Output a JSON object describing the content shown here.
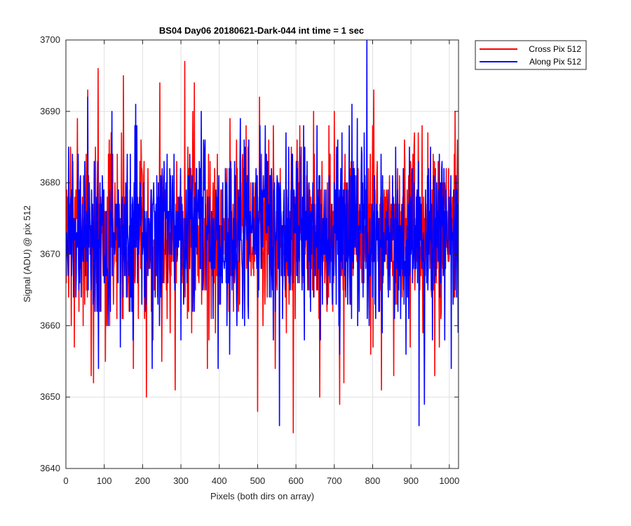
{
  "chart_data": {
    "type": "line",
    "title": "BS04 Day06 20180621-Dark-044 int time = 1 sec",
    "xlabel": "Pixels (both dirs on array)",
    "ylabel": "Signal (ADU) @ pix 512",
    "xlim": [
      0,
      1024
    ],
    "ylim": [
      3640,
      3700
    ],
    "xticks": [
      0,
      100,
      200,
      300,
      400,
      500,
      600,
      700,
      800,
      900,
      1000
    ],
    "yticks": [
      3640,
      3650,
      3660,
      3670,
      3680,
      3690,
      3700
    ],
    "grid": true,
    "legend_position": "top-right outside",
    "series_stats": {
      "mean": 3673,
      "spread": 6,
      "samples": 1024
    },
    "series": [
      {
        "name": "Cross Pix 512",
        "color": "#ff0000",
        "seed": 7,
        "spikes": [
          [
            12,
            3685
          ],
          [
            22,
            3657
          ],
          [
            30,
            3689
          ],
          [
            45,
            3660
          ],
          [
            57,
            3693
          ],
          [
            66,
            3653
          ],
          [
            72,
            3652
          ],
          [
            84,
            3696
          ],
          [
            103,
            3655
          ],
          [
            150,
            3695
          ],
          [
            176,
            3654
          ],
          [
            204,
            3683
          ],
          [
            210,
            3650
          ],
          [
            245,
            3694
          ],
          [
            250,
            3655
          ],
          [
            285,
            3651
          ],
          [
            310,
            3697
          ],
          [
            335,
            3694
          ],
          [
            369,
            3654
          ],
          [
            428,
            3689
          ],
          [
            470,
            3688
          ],
          [
            500,
            3648
          ],
          [
            505,
            3692
          ],
          [
            546,
            3654
          ],
          [
            593,
            3645
          ],
          [
            610,
            3688
          ],
          [
            662,
            3650
          ],
          [
            700,
            3690
          ],
          [
            714,
            3649
          ],
          [
            725,
            3652
          ],
          [
            795,
            3656
          ],
          [
            803,
            3693
          ],
          [
            823,
            3651
          ],
          [
            855,
            3653
          ],
          [
            935,
            3655
          ],
          [
            962,
            3653
          ],
          [
            1015,
            3690
          ]
        ]
      },
      {
        "name": "Along Pix 512",
        "color": "#0000ff",
        "seed": 19,
        "spikes": [
          [
            20,
            3664
          ],
          [
            57,
            3692
          ],
          [
            85,
            3654
          ],
          [
            110,
            3660
          ],
          [
            120,
            3690
          ],
          [
            142,
            3657
          ],
          [
            175,
            3658
          ],
          [
            182,
            3691
          ],
          [
            225,
            3654
          ],
          [
            244,
            3660
          ],
          [
            300,
            3658
          ],
          [
            335,
            3662
          ],
          [
            359,
            3686
          ],
          [
            397,
            3654
          ],
          [
            455,
            3689
          ],
          [
            476,
            3661
          ],
          [
            506,
            3688
          ],
          [
            557,
            3646
          ],
          [
            655,
            3688
          ],
          [
            720,
            3687
          ],
          [
            785,
            3700
          ],
          [
            825,
            3659
          ],
          [
            887,
            3656
          ],
          [
            921,
            3646
          ],
          [
            935,
            3649
          ],
          [
            1005,
            3654
          ],
          [
            1019,
            3664
          ]
        ]
      }
    ]
  }
}
